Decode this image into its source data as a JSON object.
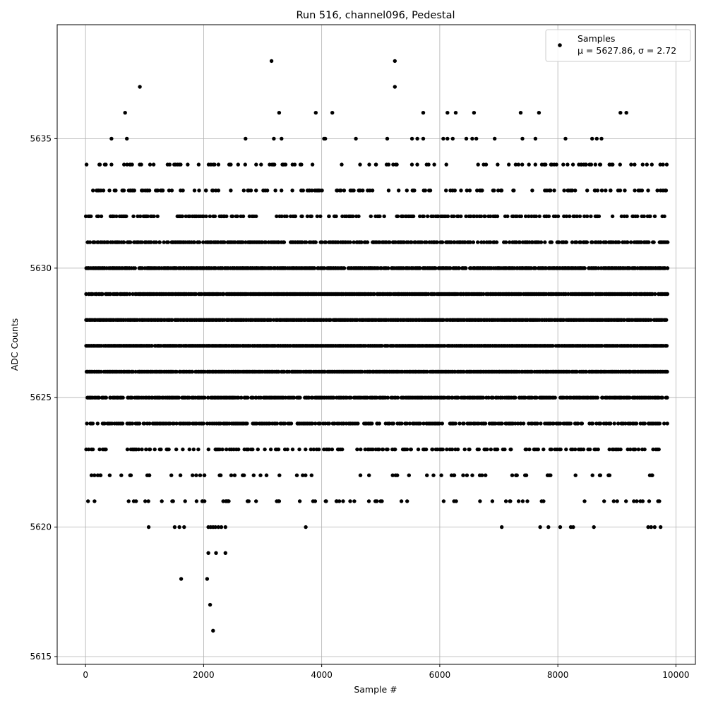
{
  "chart_data": {
    "type": "scatter",
    "title": "Run 516, channel096, Pedestal",
    "xlabel": "Sample #",
    "ylabel": "ADC Counts",
    "xlim": [
      -480,
      10330
    ],
    "ylim": [
      5614.7,
      5639.4
    ],
    "xticks": [
      0,
      2000,
      4000,
      6000,
      8000,
      10000
    ],
    "yticks": [
      5615,
      5620,
      5625,
      5630,
      5635
    ],
    "grid": true,
    "legend_position": "top-right",
    "marker_color": "#000000",
    "series": [
      {
        "name": "Samples",
        "note": "μ = 5627.86, σ = 2.72",
        "sample_count": 9850,
        "dense_levels": [
          5623,
          5624,
          5625,
          5626,
          5627,
          5628,
          5629,
          5630,
          5631,
          5632
        ],
        "sparse_levels": [
          5620,
          5621,
          5622,
          5633,
          5634
        ],
        "points": [
          [
            920,
            5637
          ],
          [
            3150,
            5638
          ],
          [
            5240,
            5638
          ],
          [
            5240,
            5637
          ],
          [
            670,
            5636
          ],
          [
            3280,
            5636
          ],
          [
            3900,
            5636
          ],
          [
            4180,
            5636
          ],
          [
            5720,
            5636
          ],
          [
            6130,
            5636
          ],
          [
            6270,
            5636
          ],
          [
            6580,
            5636
          ],
          [
            7370,
            5636
          ],
          [
            7680,
            5636
          ],
          [
            9060,
            5636
          ],
          [
            9160,
            5636
          ],
          [
            440,
            5635
          ],
          [
            700,
            5635
          ],
          [
            2710,
            5635
          ],
          [
            3190,
            5635
          ],
          [
            3320,
            5635
          ],
          [
            4040,
            5635
          ],
          [
            4060,
            5635
          ],
          [
            4580,
            5635
          ],
          [
            5110,
            5635
          ],
          [
            5530,
            5635
          ],
          [
            5620,
            5635
          ],
          [
            5720,
            5635
          ],
          [
            6060,
            5635
          ],
          [
            6130,
            5635
          ],
          [
            6220,
            5635
          ],
          [
            6450,
            5635
          ],
          [
            6550,
            5635
          ],
          [
            6620,
            5635
          ],
          [
            6930,
            5635
          ],
          [
            7400,
            5635
          ],
          [
            7620,
            5635
          ],
          [
            8130,
            5635
          ],
          [
            8580,
            5635
          ],
          [
            8660,
            5635
          ],
          [
            8740,
            5635
          ],
          [
            1620,
            5618
          ],
          [
            2060,
            5618
          ],
          [
            2080,
            5619
          ],
          [
            2210,
            5619
          ],
          [
            2370,
            5619
          ],
          [
            2110,
            5617
          ],
          [
            2160,
            5616
          ],
          [
            1070,
            5620
          ],
          [
            1510,
            5620
          ],
          [
            1590,
            5620
          ],
          [
            1670,
            5620
          ],
          [
            2080,
            5620
          ],
          [
            2120,
            5620
          ],
          [
            2160,
            5620
          ],
          [
            2200,
            5620
          ],
          [
            2250,
            5620
          ],
          [
            2300,
            5620
          ],
          [
            2370,
            5620
          ],
          [
            3730,
            5620
          ],
          [
            7050,
            5620
          ],
          [
            7700,
            5620
          ],
          [
            7840,
            5620
          ],
          [
            8040,
            5620
          ],
          [
            8220,
            5620
          ],
          [
            8260,
            5620
          ],
          [
            8610,
            5620
          ],
          [
            9530,
            5620
          ],
          [
            9580,
            5620
          ],
          [
            9640,
            5620
          ],
          [
            9740,
            5620
          ]
        ]
      }
    ]
  }
}
